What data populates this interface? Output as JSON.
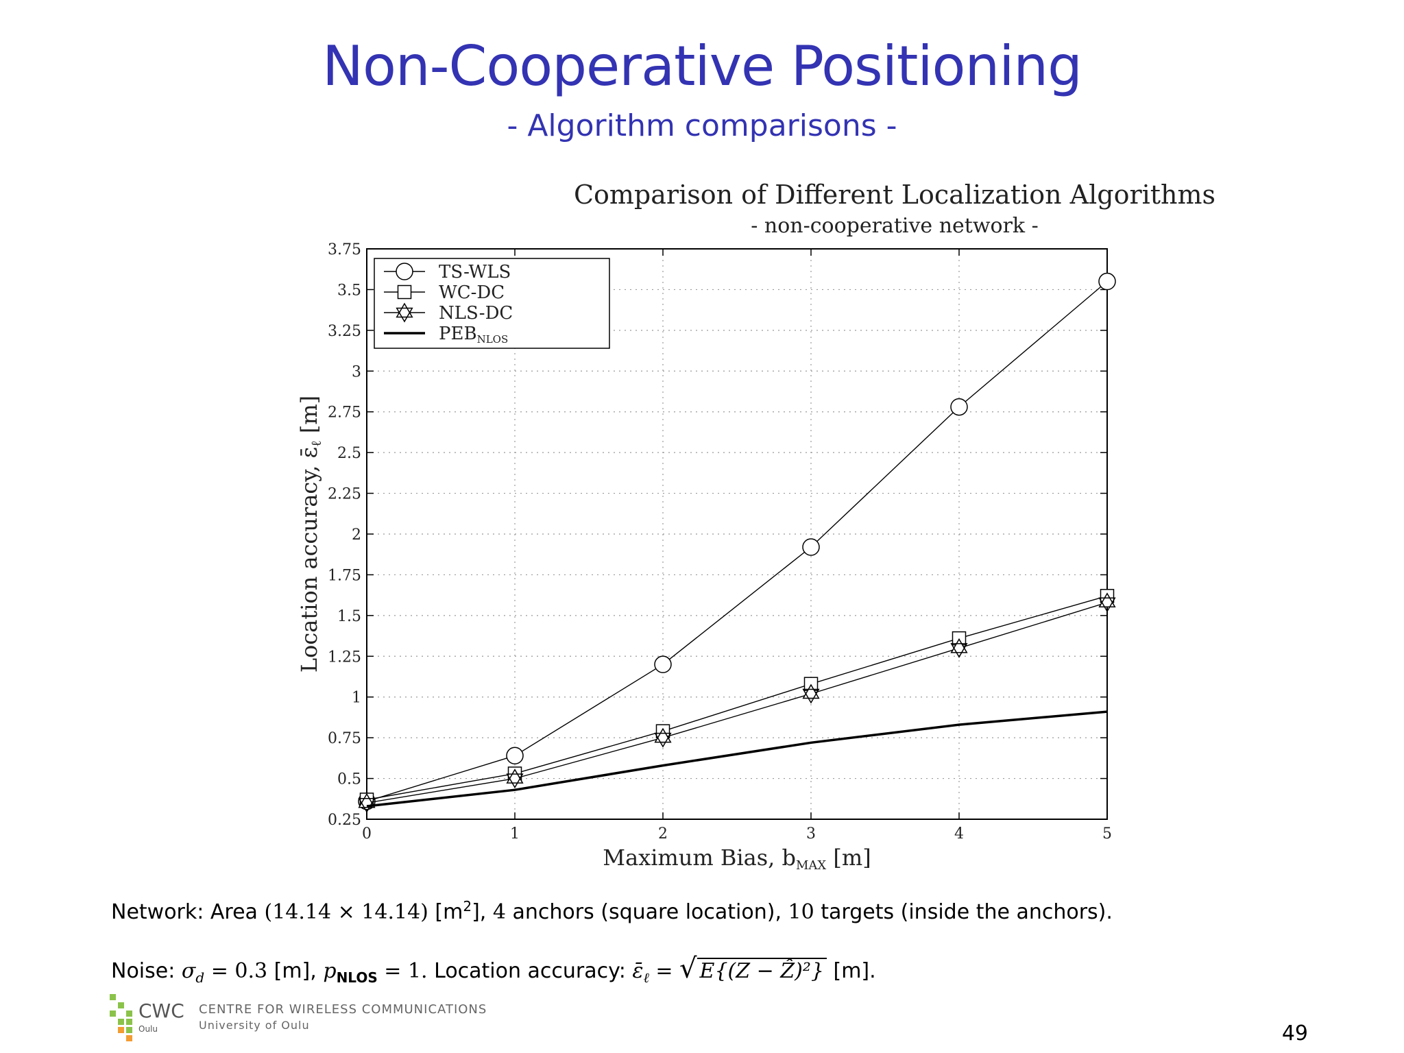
{
  "slide": {
    "title": "Non-Cooperative Positioning",
    "subtitle": "- Algorithm comparisons -",
    "page_number": "49"
  },
  "notes": {
    "network_prefix": "Network: Area ",
    "network_area": "(14.14 × 14.14)",
    "network_unit": " [m",
    "network_unit_exp": "2",
    "network_unit_close": "],",
    "network_anchors_num": "4",
    "network_anchors_text": " anchors (square location),",
    "network_targets_num": "10",
    "network_targets_text": " targets (inside the anchors).",
    "noise_prefix": "Noise: ",
    "noise_sigma": "σ",
    "noise_sigma_sub": "d",
    "noise_sigma_value": " = 0.3",
    "noise_sigma_unit": " [m], ",
    "noise_p": "p",
    "noise_p_sub": "NLOS",
    "noise_p_value": " = 1.",
    "accuracy_label": " Location accuracy: ",
    "accuracy_symbol": "ε̄",
    "accuracy_symbol_sub": "ℓ",
    "accuracy_eq": " = ",
    "accuracy_expr": "E{(Z − Ẑ)²}",
    "accuracy_unit": " [m]."
  },
  "logo": {
    "acronym": "CWC",
    "city": "Oulu",
    "centre": "CENTRE FOR WIRELESS COMMUNICATIONS",
    "university": "University of Oulu"
  },
  "colors": {
    "title": "#3333b3",
    "logo_green": "#8bc34a",
    "logo_orange": "#f39c32"
  },
  "chart_data": {
    "type": "line",
    "title": "Comparison of Different Localization Algorithms",
    "subtitle": "- non-cooperative network -",
    "xlabel": "Maximum Bias, b",
    "xlabel_sub": "MAX",
    "xlabel_unit": " [m]",
    "ylabel": "Location accuracy, ε̄",
    "ylabel_sub": "ℓ",
    "ylabel_unit": " [m]",
    "xlim": [
      0,
      5
    ],
    "ylim": [
      0.25,
      3.75
    ],
    "x_ticks": [
      "0",
      "1",
      "2",
      "3",
      "4",
      "5"
    ],
    "y_ticks": [
      "0.25",
      "0.5",
      "0.75",
      "1",
      "1.25",
      "1.5",
      "1.75",
      "2",
      "2.25",
      "2.5",
      "2.75",
      "3",
      "3.25",
      "3.5",
      "3.75"
    ],
    "grid": true,
    "legend_position": "top-left",
    "x": [
      0,
      1,
      2,
      3,
      4,
      5
    ],
    "series": [
      {
        "name": "TS-WLS",
        "marker": "circle",
        "values": [
          0.36,
          0.64,
          1.2,
          1.92,
          2.78,
          3.55
        ]
      },
      {
        "name": "WC-DC",
        "marker": "square",
        "values": [
          0.37,
          0.53,
          0.79,
          1.08,
          1.36,
          1.62
        ]
      },
      {
        "name": "NLS-DC",
        "marker": "star",
        "values": [
          0.35,
          0.5,
          0.75,
          1.02,
          1.3,
          1.58
        ]
      },
      {
        "name": "PEB",
        "name_sub": "NLOS",
        "marker": "none",
        "bold": true,
        "values": [
          0.33,
          0.43,
          0.58,
          0.72,
          0.83,
          0.91
        ]
      }
    ]
  }
}
